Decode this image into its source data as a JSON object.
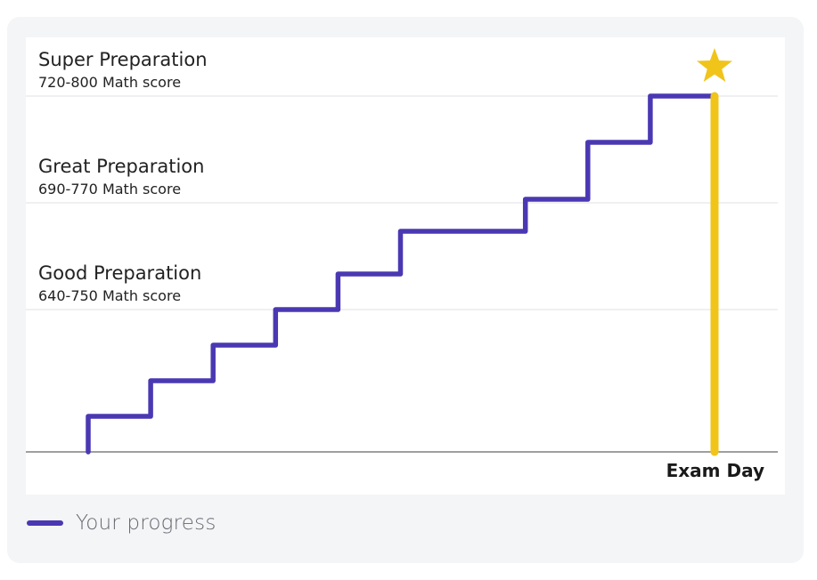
{
  "chart_data": {
    "type": "line",
    "title": "",
    "xlabel": "",
    "ylabel": "",
    "levels": [
      {
        "name": "Super Preparation",
        "range": "720-800 Math score",
        "y": 1.0
      },
      {
        "name": "Great Preparation",
        "range": "690-770 Math score",
        "y": 0.7
      },
      {
        "name": "Good Preparation",
        "range": "640-750 Math score",
        "y": 0.4
      }
    ],
    "marker_label": "Exam Day",
    "series": [
      {
        "name": "Your progress",
        "color": "#4a38b3",
        "x": [
          0,
          1,
          2,
          3,
          4,
          5,
          7,
          8,
          9,
          10
        ],
        "y": [
          0.1,
          0.2,
          0.3,
          0.4,
          0.5,
          0.62,
          0.71,
          0.87,
          1.0,
          1.0
        ]
      }
    ],
    "exam_day_color": "#f0c419",
    "star_icon": "star-icon",
    "legend": [
      "Your progress"
    ],
    "legend_position": "bottom-left"
  }
}
